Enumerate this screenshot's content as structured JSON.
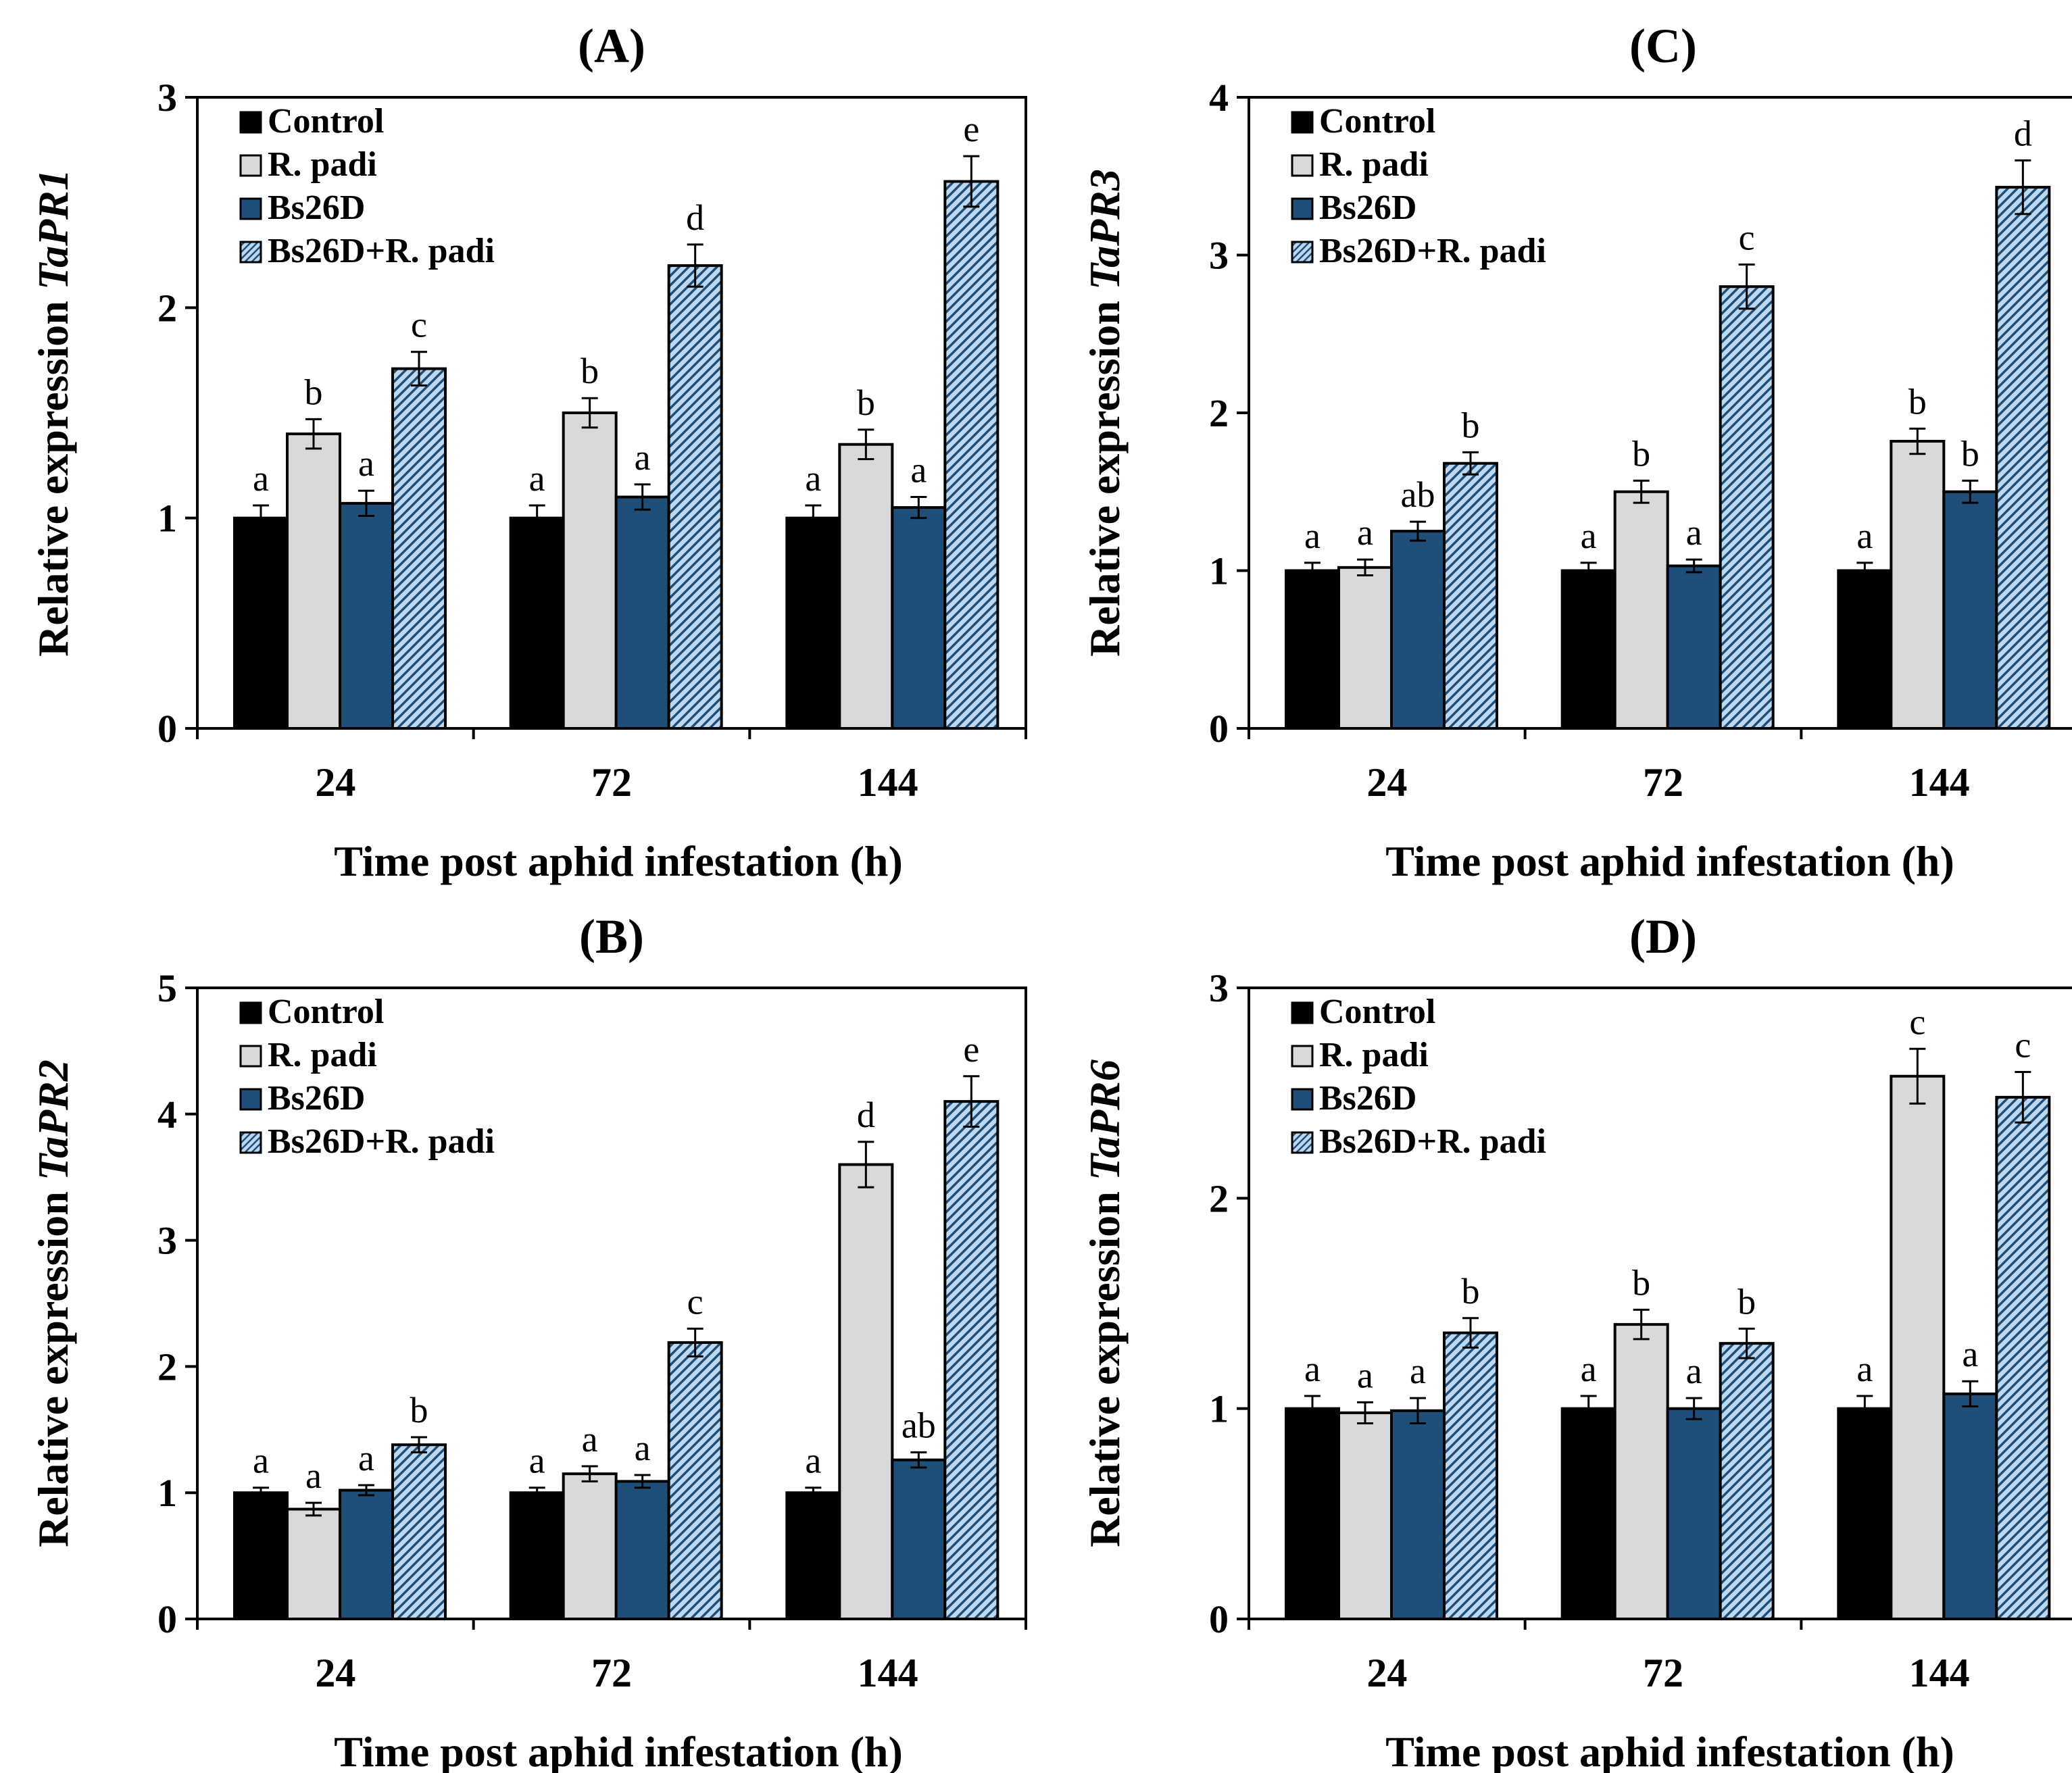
{
  "figure": {
    "series_names": [
      "Control",
      "R. padi",
      "Bs26D",
      "Bs26D+R. padi"
    ],
    "colors": {
      "control": "#000000",
      "r_padi": "#d9d9d9",
      "bs26d": "#1f4e79",
      "combo_base": "#bdd7ee",
      "combo_hatch": "#1f4e79"
    }
  },
  "chart_data": [
    {
      "type": "bar",
      "panel_label": "(A)",
      "title": "(A)",
      "ylabel_prefix": "Relative expression ",
      "ylabel_gene": "TaPR1",
      "xlabel": "Time post aphid infestation (h)",
      "categories": [
        "24",
        "72",
        "144"
      ],
      "ylim": [
        0,
        3
      ],
      "yticks": [
        "0",
        "1",
        "2",
        "3"
      ],
      "legend_position": "top-left",
      "grid": false,
      "series": [
        {
          "name": "Control",
          "values": [
            1.0,
            1.0,
            1.0
          ],
          "errors": [
            0.06,
            0.06,
            0.06
          ],
          "letters": [
            "a",
            "a",
            "a"
          ]
        },
        {
          "name": "R. padi",
          "values": [
            1.4,
            1.5,
            1.35
          ],
          "errors": [
            0.07,
            0.07,
            0.07
          ],
          "letters": [
            "b",
            "b",
            "b"
          ]
        },
        {
          "name": "Bs26D",
          "values": [
            1.07,
            1.1,
            1.05
          ],
          "errors": [
            0.06,
            0.06,
            0.05
          ],
          "letters": [
            "a",
            "a",
            "a"
          ]
        },
        {
          "name": "Bs26D+R. padi",
          "values": [
            1.71,
            2.2,
            2.6
          ],
          "errors": [
            0.08,
            0.1,
            0.12
          ],
          "letters": [
            "c",
            "d",
            "e"
          ]
        }
      ]
    },
    {
      "type": "bar",
      "panel_label": "(C)",
      "title": "(C)",
      "ylabel_prefix": "Relative expression ",
      "ylabel_gene": "TaPR3",
      "xlabel": "Time post aphid infestation (h)",
      "categories": [
        "24",
        "72",
        "144"
      ],
      "ylim": [
        0,
        4
      ],
      "yticks": [
        "0",
        "1",
        "2",
        "3",
        "4"
      ],
      "legend_position": "top-left",
      "grid": false,
      "series": [
        {
          "name": "Control",
          "values": [
            1.0,
            1.0,
            1.0
          ],
          "errors": [
            0.05,
            0.05,
            0.05
          ],
          "letters": [
            "a",
            "a",
            "a"
          ]
        },
        {
          "name": "R. padi",
          "values": [
            1.02,
            1.5,
            1.82
          ],
          "errors": [
            0.05,
            0.07,
            0.08
          ],
          "letters": [
            "a",
            "b",
            "b"
          ]
        },
        {
          "name": "Bs26D",
          "values": [
            1.25,
            1.03,
            1.5
          ],
          "errors": [
            0.06,
            0.04,
            0.07
          ],
          "letters": [
            "ab",
            "a",
            "b"
          ]
        },
        {
          "name": "Bs26D+R. padi",
          "values": [
            1.68,
            2.8,
            3.43
          ],
          "errors": [
            0.07,
            0.14,
            0.17
          ],
          "letters": [
            "b",
            "c",
            "d"
          ]
        }
      ]
    },
    {
      "type": "bar",
      "panel_label": "(B)",
      "title": "(B)",
      "ylabel_prefix": "Relative expression ",
      "ylabel_gene": "TaPR2",
      "xlabel": "Time post aphid infestation (h)",
      "categories": [
        "24",
        "72",
        "144"
      ],
      "ylim": [
        0,
        5
      ],
      "yticks": [
        "0",
        "1",
        "2",
        "3",
        "4",
        "5"
      ],
      "legend_position": "top-left",
      "grid": false,
      "series": [
        {
          "name": "Control",
          "values": [
            1.0,
            1.0,
            1.0
          ],
          "errors": [
            0.04,
            0.04,
            0.04
          ],
          "letters": [
            "a",
            "a",
            "a"
          ]
        },
        {
          "name": "R. padi",
          "values": [
            0.87,
            1.15,
            3.6
          ],
          "errors": [
            0.05,
            0.06,
            0.18
          ],
          "letters": [
            "a",
            "a",
            "d"
          ]
        },
        {
          "name": "Bs26D",
          "values": [
            1.02,
            1.09,
            1.26
          ],
          "errors": [
            0.04,
            0.05,
            0.06
          ],
          "letters": [
            "a",
            "a",
            "ab"
          ]
        },
        {
          "name": "Bs26D+R. padi",
          "values": [
            1.38,
            2.19,
            4.1
          ],
          "errors": [
            0.06,
            0.11,
            0.2
          ],
          "letters": [
            "b",
            "c",
            "e"
          ]
        }
      ]
    },
    {
      "type": "bar",
      "panel_label": "(D)",
      "title": "(D)",
      "ylabel_prefix": "Relative expression ",
      "ylabel_gene": "TaPR6",
      "xlabel": "Time post aphid infestation (h)",
      "categories": [
        "24",
        "72",
        "144"
      ],
      "ylim": [
        0,
        3
      ],
      "yticks": [
        "0",
        "1",
        "2",
        "3"
      ],
      "legend_position": "top-left",
      "grid": false,
      "series": [
        {
          "name": "Control",
          "values": [
            1.0,
            1.0,
            1.0
          ],
          "errors": [
            0.06,
            0.06,
            0.06
          ],
          "letters": [
            "a",
            "a",
            "a"
          ]
        },
        {
          "name": "R. padi",
          "values": [
            0.98,
            1.4,
            2.58
          ],
          "errors": [
            0.05,
            0.07,
            0.13
          ],
          "letters": [
            "a",
            "b",
            "c"
          ]
        },
        {
          "name": "Bs26D",
          "values": [
            0.99,
            1.0,
            1.07
          ],
          "errors": [
            0.06,
            0.05,
            0.06
          ],
          "letters": [
            "a",
            "a",
            "a"
          ]
        },
        {
          "name": "Bs26D+R. padi",
          "values": [
            1.36,
            1.31,
            2.48
          ],
          "errors": [
            0.07,
            0.07,
            0.12
          ],
          "letters": [
            "b",
            "b",
            "c"
          ]
        }
      ]
    }
  ]
}
